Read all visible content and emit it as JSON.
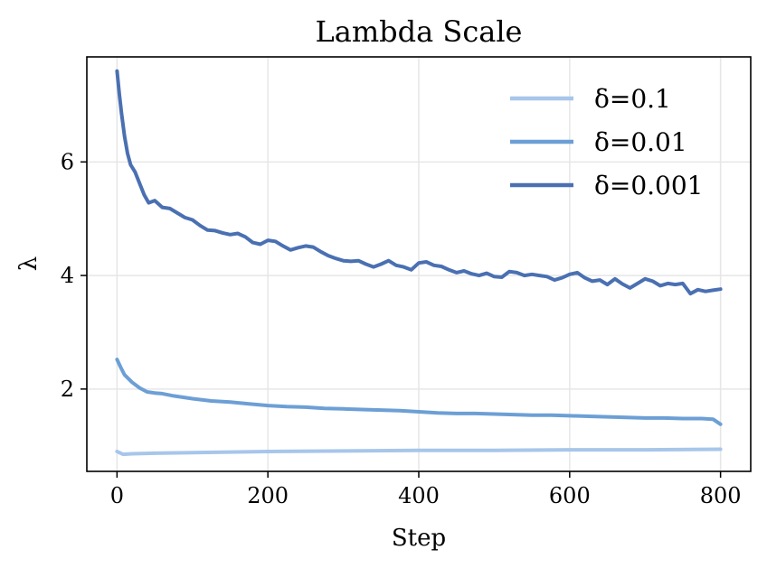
{
  "chart_data": {
    "type": "line",
    "title": "Lambda Scale",
    "xlabel": "Step",
    "ylabel": "λ",
    "xlim": [
      -40,
      840
    ],
    "ylim": [
      0.55,
      7.85
    ],
    "xticks": [
      0,
      200,
      400,
      600,
      800
    ],
    "yticks": [
      2,
      4,
      6
    ],
    "grid": true,
    "legend_position": "top-right",
    "series": [
      {
        "name": "δ=0.1",
        "color": "#a7c6ea",
        "points": [
          [
            0,
            0.9
          ],
          [
            8,
            0.85
          ],
          [
            20,
            0.86
          ],
          [
            50,
            0.87
          ],
          [
            100,
            0.88
          ],
          [
            150,
            0.89
          ],
          [
            200,
            0.9
          ],
          [
            300,
            0.91
          ],
          [
            400,
            0.92
          ],
          [
            500,
            0.92
          ],
          [
            600,
            0.93
          ],
          [
            700,
            0.93
          ],
          [
            800,
            0.94
          ]
        ]
      },
      {
        "name": "δ=0.01",
        "color": "#6c9fd5",
        "points": [
          [
            0,
            2.52
          ],
          [
            5,
            2.38
          ],
          [
            10,
            2.25
          ],
          [
            20,
            2.12
          ],
          [
            30,
            2.02
          ],
          [
            40,
            1.95
          ],
          [
            50,
            1.93
          ],
          [
            60,
            1.92
          ],
          [
            75,
            1.88
          ],
          [
            100,
            1.83
          ],
          [
            125,
            1.79
          ],
          [
            150,
            1.77
          ],
          [
            175,
            1.74
          ],
          [
            200,
            1.71
          ],
          [
            225,
            1.69
          ],
          [
            250,
            1.68
          ],
          [
            275,
            1.66
          ],
          [
            300,
            1.65
          ],
          [
            325,
            1.64
          ],
          [
            350,
            1.63
          ],
          [
            375,
            1.62
          ],
          [
            400,
            1.6
          ],
          [
            425,
            1.58
          ],
          [
            450,
            1.57
          ],
          [
            475,
            1.57
          ],
          [
            500,
            1.56
          ],
          [
            525,
            1.55
          ],
          [
            550,
            1.54
          ],
          [
            575,
            1.54
          ],
          [
            600,
            1.53
          ],
          [
            625,
            1.52
          ],
          [
            650,
            1.51
          ],
          [
            675,
            1.5
          ],
          [
            700,
            1.49
          ],
          [
            725,
            1.49
          ],
          [
            750,
            1.48
          ],
          [
            775,
            1.48
          ],
          [
            790,
            1.47
          ],
          [
            800,
            1.38
          ]
        ]
      },
      {
        "name": "δ=0.001",
        "color": "#4a70b2",
        "points": [
          [
            0,
            7.6
          ],
          [
            3,
            7.2
          ],
          [
            6,
            6.85
          ],
          [
            10,
            6.45
          ],
          [
            14,
            6.15
          ],
          [
            18,
            5.95
          ],
          [
            24,
            5.82
          ],
          [
            30,
            5.62
          ],
          [
            36,
            5.42
          ],
          [
            42,
            5.28
          ],
          [
            50,
            5.32
          ],
          [
            60,
            5.2
          ],
          [
            70,
            5.18
          ],
          [
            80,
            5.1
          ],
          [
            90,
            5.02
          ],
          [
            100,
            4.98
          ],
          [
            110,
            4.88
          ],
          [
            120,
            4.8
          ],
          [
            130,
            4.79
          ],
          [
            140,
            4.75
          ],
          [
            150,
            4.72
          ],
          [
            160,
            4.74
          ],
          [
            170,
            4.68
          ],
          [
            180,
            4.58
          ],
          [
            190,
            4.55
          ],
          [
            200,
            4.62
          ],
          [
            210,
            4.6
          ],
          [
            220,
            4.52
          ],
          [
            230,
            4.45
          ],
          [
            240,
            4.49
          ],
          [
            250,
            4.52
          ],
          [
            260,
            4.5
          ],
          [
            270,
            4.42
          ],
          [
            280,
            4.35
          ],
          [
            290,
            4.3
          ],
          [
            300,
            4.26
          ],
          [
            310,
            4.25
          ],
          [
            320,
            4.26
          ],
          [
            330,
            4.2
          ],
          [
            340,
            4.15
          ],
          [
            350,
            4.2
          ],
          [
            360,
            4.26
          ],
          [
            370,
            4.18
          ],
          [
            380,
            4.15
          ],
          [
            390,
            4.1
          ],
          [
            400,
            4.22
          ],
          [
            410,
            4.24
          ],
          [
            420,
            4.18
          ],
          [
            430,
            4.16
          ],
          [
            440,
            4.1
          ],
          [
            450,
            4.05
          ],
          [
            460,
            4.08
          ],
          [
            470,
            4.03
          ],
          [
            480,
            4.0
          ],
          [
            490,
            4.04
          ],
          [
            500,
            3.98
          ],
          [
            510,
            3.97
          ],
          [
            520,
            4.07
          ],
          [
            530,
            4.05
          ],
          [
            540,
            4.0
          ],
          [
            550,
            4.02
          ],
          [
            560,
            4.0
          ],
          [
            570,
            3.98
          ],
          [
            580,
            3.92
          ],
          [
            590,
            3.96
          ],
          [
            600,
            4.02
          ],
          [
            610,
            4.05
          ],
          [
            620,
            3.96
          ],
          [
            630,
            3.9
          ],
          [
            640,
            3.92
          ],
          [
            650,
            3.84
          ],
          [
            660,
            3.94
          ],
          [
            670,
            3.85
          ],
          [
            680,
            3.78
          ],
          [
            690,
            3.86
          ],
          [
            700,
            3.94
          ],
          [
            710,
            3.9
          ],
          [
            720,
            3.82
          ],
          [
            730,
            3.86
          ],
          [
            740,
            3.84
          ],
          [
            750,
            3.86
          ],
          [
            760,
            3.68
          ],
          [
            770,
            3.75
          ],
          [
            780,
            3.72
          ],
          [
            790,
            3.74
          ],
          [
            800,
            3.76
          ]
        ]
      }
    ]
  }
}
